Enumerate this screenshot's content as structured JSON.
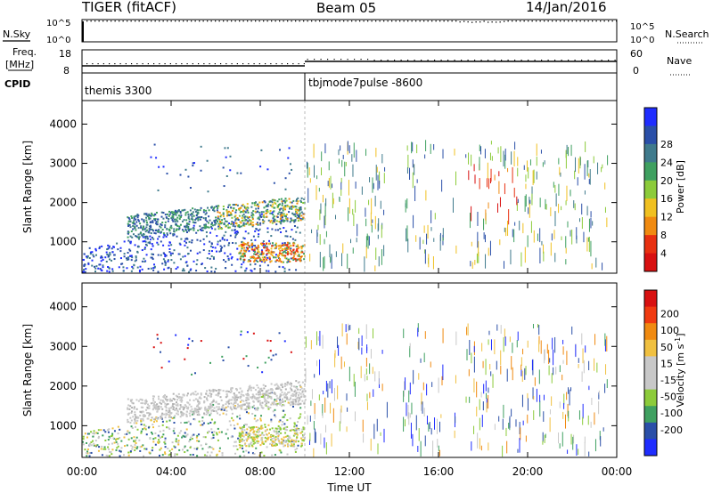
{
  "header": {
    "radar": "TIGER (fitACF)",
    "beam": "Beam 05",
    "date": "14/Jan/2016"
  },
  "noise_panel": {
    "left_label": "N.Sky",
    "right_label": "N.Search",
    "ticks_top": "10^5",
    "ticks_bottom": "10^0"
  },
  "freq_panel": {
    "left_label_top": "Freq.",
    "left_label_unit": "[MHz]",
    "ticks_left": [
      "18",
      "8"
    ],
    "right_label": "Nave",
    "ticks_right": [
      "60",
      "0"
    ]
  },
  "cpid_panel": {
    "label": "CPID",
    "segments": [
      {
        "name": "themis 3300",
        "start_hour": 0
      },
      {
        "name": "tbjmode7pulse -8600",
        "start_hour": 10
      }
    ]
  },
  "time_axis": {
    "label": "Time UT",
    "ticks": [
      "00:00",
      "04:00",
      "08:00",
      "12:00",
      "16:00",
      "20:00",
      "00:00"
    ]
  },
  "colors": {
    "power": [
      "#1f2dff",
      "#2a4fa8",
      "#3f7a8c",
      "#3fa060",
      "#8ccb3a",
      "#f0c020",
      "#f08a10",
      "#e83010",
      "#d81010"
    ],
    "velocity": [
      "#d81010",
      "#f03a10",
      "#f08a10",
      "#f0c040",
      "#c8c8c8",
      "#c8c8c8",
      "#8ccb3a",
      "#3fa060",
      "#2a4fa8",
      "#1f2dff"
    ]
  },
  "chart_data": [
    {
      "type": "heatmap",
      "panel": "power",
      "ylabel": "Slant Range [km]",
      "xlabel": "Time UT",
      "xlim": [
        0,
        24
      ],
      "ylim": [
        200,
        4600
      ],
      "yticks": [
        "1000",
        "2000",
        "3000",
        "4000"
      ],
      "colorbar_label": "Power [dB]",
      "colorbar_ticks": [
        "4",
        "8",
        "12",
        "16",
        "20",
        "24",
        "28"
      ]
    },
    {
      "type": "heatmap",
      "panel": "velocity",
      "ylabel": "Slant Range [km]",
      "xlabel": "Time UT",
      "xlim": [
        0,
        24
      ],
      "ylim": [
        200,
        4600
      ],
      "yticks": [
        "1000",
        "2000",
        "3000",
        "4000"
      ],
      "colorbar_label": "Velocity [m s-1]",
      "colorbar_ticks": [
        "200",
        "100",
        "50",
        "15",
        "-15",
        "-50",
        "-100",
        "-200"
      ]
    }
  ]
}
